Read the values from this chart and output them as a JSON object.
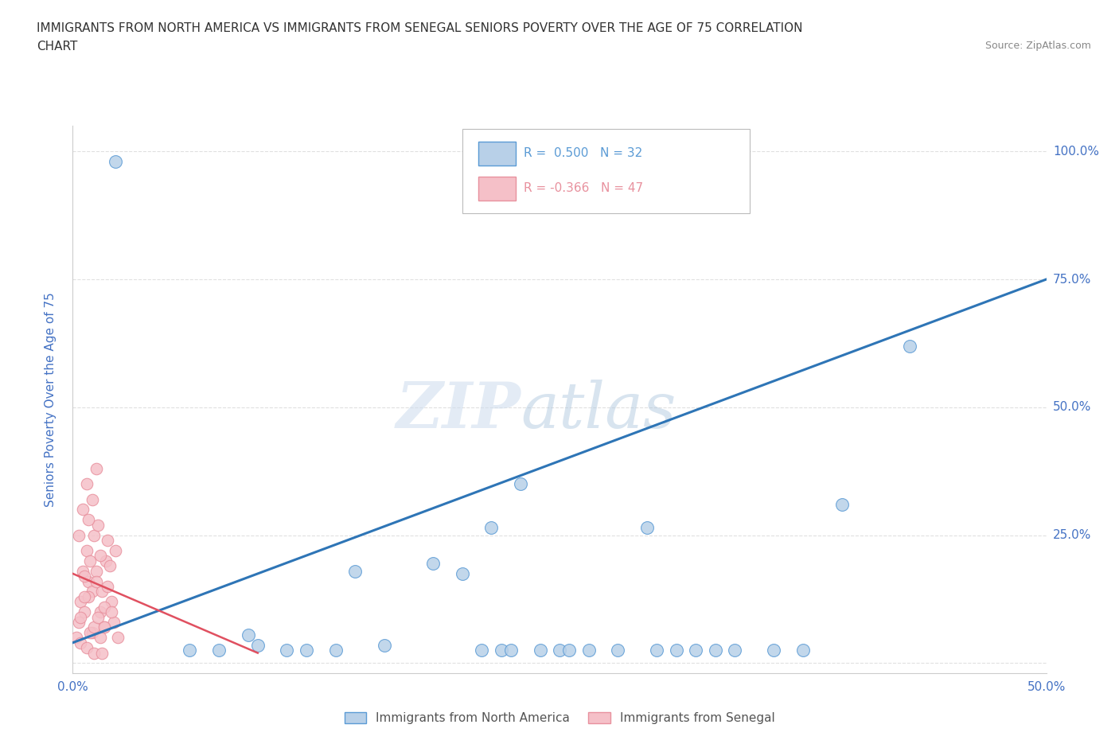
{
  "title_line1": "IMMIGRANTS FROM NORTH AMERICA VS IMMIGRANTS FROM SENEGAL SENIORS POVERTY OVER THE AGE OF 75 CORRELATION",
  "title_line2": "CHART",
  "source_text": "Source: ZipAtlas.com",
  "ylabel": "Seniors Poverty Over the Age of 75",
  "xlim": [
    0.0,
    0.5
  ],
  "ylim": [
    -0.02,
    1.05
  ],
  "yticks": [
    0.0,
    0.25,
    0.5,
    0.75,
    1.0
  ],
  "ytick_labels": [
    "",
    "25.0%",
    "50.0%",
    "75.0%",
    "100.0%"
  ],
  "xticks": [
    0.0,
    0.1,
    0.2,
    0.3,
    0.4,
    0.5
  ],
  "xtick_labels": [
    "0.0%",
    "",
    "",
    "",
    "",
    "50.0%"
  ],
  "grid_color": "#e0e0e0",
  "blue_scatter_x": [
    0.022,
    0.06,
    0.075,
    0.09,
    0.095,
    0.11,
    0.12,
    0.135,
    0.145,
    0.16,
    0.185,
    0.2,
    0.21,
    0.215,
    0.22,
    0.225,
    0.23,
    0.24,
    0.25,
    0.255,
    0.265,
    0.28,
    0.295,
    0.3,
    0.31,
    0.32,
    0.33,
    0.34,
    0.36,
    0.375,
    0.395,
    0.43
  ],
  "blue_scatter_y": [
    0.98,
    0.025,
    0.025,
    0.055,
    0.035,
    0.025,
    0.025,
    0.025,
    0.18,
    0.035,
    0.195,
    0.175,
    0.025,
    0.265,
    0.025,
    0.025,
    0.35,
    0.025,
    0.025,
    0.025,
    0.025,
    0.025,
    0.265,
    0.025,
    0.025,
    0.025,
    0.025,
    0.025,
    0.025,
    0.025,
    0.31,
    0.62
  ],
  "pink_scatter_x": [
    0.002,
    0.003,
    0.004,
    0.005,
    0.006,
    0.007,
    0.008,
    0.009,
    0.01,
    0.011,
    0.012,
    0.013,
    0.014,
    0.015,
    0.016,
    0.017,
    0.018,
    0.019,
    0.02,
    0.021,
    0.022,
    0.023,
    0.004,
    0.006,
    0.008,
    0.01,
    0.012,
    0.014,
    0.016,
    0.018,
    0.02,
    0.005,
    0.007,
    0.009,
    0.011,
    0.013,
    0.004,
    0.006,
    0.008,
    0.01,
    0.012,
    0.014,
    0.016,
    0.003,
    0.007,
    0.011,
    0.015
  ],
  "pink_scatter_y": [
    0.05,
    0.08,
    0.12,
    0.18,
    0.1,
    0.22,
    0.16,
    0.2,
    0.14,
    0.25,
    0.18,
    0.27,
    0.1,
    0.14,
    0.07,
    0.2,
    0.15,
    0.19,
    0.12,
    0.08,
    0.22,
    0.05,
    0.09,
    0.17,
    0.13,
    0.06,
    0.16,
    0.21,
    0.11,
    0.24,
    0.1,
    0.3,
    0.35,
    0.06,
    0.07,
    0.09,
    0.04,
    0.13,
    0.28,
    0.32,
    0.38,
    0.05,
    0.07,
    0.25,
    0.03,
    0.02,
    0.02
  ],
  "blue_line_x": [
    0.0,
    0.5
  ],
  "blue_line_y": [
    0.04,
    0.75
  ],
  "pink_line_x": [
    0.0,
    0.095
  ],
  "pink_line_y": [
    0.175,
    0.02
  ],
  "blue_color": "#5b9bd5",
  "pink_color": "#e8919e",
  "blue_scatter_color": "#b8d0e8",
  "pink_scatter_color": "#f5c0c8",
  "line_blue_color": "#2e75b6",
  "line_pink_color": "#e05060",
  "background_color": "#ffffff",
  "title_color": "#333333",
  "axis_label_color": "#4472c4",
  "tick_color": "#4472c4",
  "title_fontsize": 11,
  "axis_label_fontsize": 11
}
